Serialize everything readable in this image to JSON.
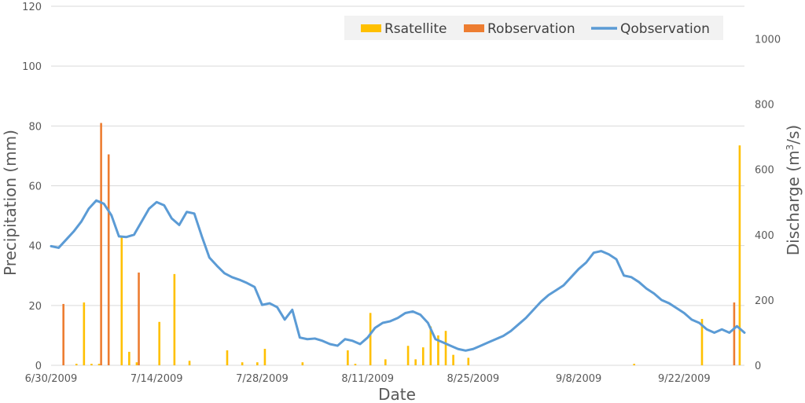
{
  "chart_data": {
    "type": "bar+line",
    "xlabel": "Date",
    "ylabel_left": "Precipitation (mm)",
    "ylabel_right_main": "Discharge (m",
    "ylabel_right_sup": "3",
    "ylabel_right_end": "/s)",
    "ylim_left": [
      0,
      120
    ],
    "ylim_right": [
      0,
      1100
    ],
    "yticks_left": [
      0,
      20,
      40,
      60,
      80,
      100,
      120
    ],
    "yticks_right": [
      0,
      200,
      400,
      600,
      800,
      1000
    ],
    "start_date": "2009-06-30",
    "num_days": 92,
    "xtick_labels": [
      "6/30/2009",
      "7/14/2009",
      "7/28/2009",
      "8/11/2009",
      "8/25/2009",
      "9/8/2009",
      "9/22/2009"
    ],
    "xtick_days": [
      0,
      14,
      28,
      42,
      56,
      70,
      84
    ],
    "grid": "horizontal",
    "legend_position": "top-right",
    "colors": {
      "Rsatellite": "#FFC000",
      "Robservation": "#ED7D31",
      "Qobservation": "#5B9BD5",
      "grid": "#D9D9D9",
      "axis_text": "#595959"
    },
    "series": [
      {
        "name": "Rsatellite",
        "kind": "bar",
        "axis": "left",
        "days": [
          3,
          4,
          5,
          6,
          9,
          10,
          11,
          12,
          13,
          14,
          16,
          18,
          23,
          25,
          27,
          28,
          30,
          31,
          33,
          39,
          40,
          41,
          42,
          44,
          45,
          46,
          47,
          48,
          49,
          50,
          51,
          52,
          53,
          55,
          61,
          77,
          86,
          91
        ],
        "values": [
          0.5,
          21,
          0.5,
          0.5,
          43,
          4.5,
          1,
          0,
          0,
          14.5,
          30.5,
          1.5,
          5,
          1,
          1,
          5.5,
          0,
          0,
          1,
          5,
          0.5,
          0,
          17.5,
          2,
          0,
          0,
          6.5,
          2,
          6,
          13,
          10,
          11.5,
          3.5,
          2.5,
          0,
          0.5,
          15.5,
          73.5
        ]
      },
      {
        "name": "Robservation",
        "kind": "bar",
        "axis": "left",
        "days": [
          1,
          6,
          7,
          11,
          90
        ],
        "values": [
          20.5,
          81,
          70.5,
          31,
          21
        ]
      },
      {
        "name": "Qobservation",
        "kind": "line",
        "axis": "right",
        "x_days": [
          0,
          1,
          2,
          3,
          4,
          5,
          6,
          7,
          8,
          9,
          10,
          11,
          12,
          13,
          14,
          15,
          16,
          17,
          18,
          19,
          20,
          21,
          22,
          23,
          24,
          25,
          26,
          27,
          28,
          29,
          30,
          31,
          32,
          33,
          34,
          35,
          36,
          37,
          38,
          39,
          40,
          41,
          42,
          43,
          44,
          45,
          46,
          47,
          48,
          49,
          50,
          51,
          52,
          53,
          54,
          55,
          56,
          57,
          58,
          59,
          60,
          61,
          62,
          63,
          64,
          65,
          66,
          67,
          68,
          69,
          70,
          71,
          72,
          73,
          74,
          75,
          76,
          77,
          78,
          79,
          80,
          81,
          82,
          83,
          84,
          85,
          86,
          87,
          88,
          89,
          90,
          91,
          92
        ],
        "values": [
          365,
          360,
          385,
          410,
          440,
          480,
          505,
          495,
          460,
          395,
          393,
          400,
          440,
          480,
          500,
          490,
          450,
          430,
          470,
          465,
          395,
          330,
          305,
          282,
          270,
          262,
          252,
          240,
          185,
          190,
          178,
          140,
          170,
          85,
          80,
          82,
          75,
          65,
          60,
          80,
          75,
          65,
          85,
          115,
          130,
          135,
          145,
          160,
          165,
          155,
          130,
          80,
          70,
          60,
          50,
          45,
          50,
          60,
          70,
          80,
          90,
          105,
          125,
          145,
          170,
          195,
          215,
          230,
          245,
          270,
          295,
          315,
          345,
          350,
          340,
          325,
          275,
          270,
          255,
          235,
          220,
          200,
          190,
          175,
          160,
          140,
          130,
          110,
          100,
          110,
          100,
          120,
          100
        ]
      }
    ]
  }
}
